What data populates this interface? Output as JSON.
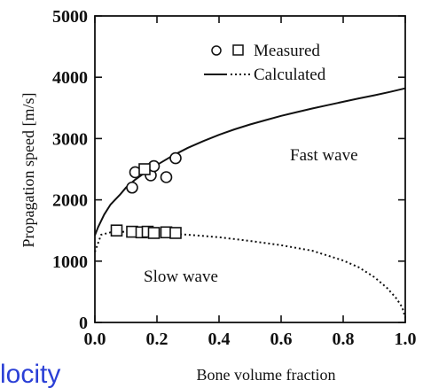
{
  "chart_data": {
    "type": "scatter",
    "title": "",
    "xlabel": "Bone volume fraction",
    "ylabel": "Propagation speed [m/s]",
    "xlim": [
      0.0,
      1.0
    ],
    "ylim": [
      0,
      5000
    ],
    "x_ticks": [
      "0.0",
      "0.2",
      "0.4",
      "0.6",
      "0.8",
      "1.0"
    ],
    "y_ticks": [
      "0",
      "1000",
      "2000",
      "3000",
      "4000",
      "5000"
    ],
    "grid": false,
    "legend": {
      "position": "top-right",
      "entries": [
        {
          "label": "Measured",
          "style": "markers"
        },
        {
          "label": "Calculated",
          "style": "lines"
        }
      ]
    },
    "annotations": [
      "Fast wave",
      "Slow wave"
    ],
    "series": [
      {
        "name": "Fast wave",
        "measured": {
          "circles": [
            [
              0.12,
              2200
            ],
            [
              0.13,
              2450
            ],
            [
              0.18,
              2400
            ],
            [
              0.19,
              2550
            ],
            [
              0.23,
              2370
            ],
            [
              0.26,
              2680
            ]
          ],
          "squares": [
            [
              0.16,
              2500
            ]
          ]
        },
        "calculated": {
          "style": "solid",
          "x": [
            0.0,
            0.01,
            0.03,
            0.05,
            0.08,
            0.1,
            0.13,
            0.16,
            0.2,
            0.25,
            0.3,
            0.35,
            0.4,
            0.45,
            0.5,
            0.55,
            0.6,
            0.65,
            0.7,
            0.75,
            0.8,
            0.85,
            0.9,
            0.95,
            1.0
          ],
          "y": [
            1420,
            1550,
            1760,
            1920,
            2080,
            2200,
            2330,
            2440,
            2570,
            2720,
            2850,
            2960,
            3060,
            3150,
            3230,
            3300,
            3370,
            3430,
            3490,
            3545,
            3600,
            3655,
            3705,
            3760,
            3820
          ]
        }
      },
      {
        "name": "Slow wave",
        "measured": {
          "circles": [],
          "squares": [
            [
              0.07,
              1500
            ],
            [
              0.12,
              1480
            ],
            [
              0.15,
              1470
            ],
            [
              0.17,
              1480
            ],
            [
              0.19,
              1460
            ],
            [
              0.23,
              1470
            ],
            [
              0.26,
              1460
            ]
          ]
        },
        "calculated": {
          "style": "dotted",
          "x": [
            0.0,
            0.02,
            0.05,
            0.1,
            0.2,
            0.3,
            0.4,
            0.5,
            0.6,
            0.7,
            0.8,
            0.85,
            0.9,
            0.94,
            0.97,
            0.99,
            1.0
          ],
          "y": [
            1150,
            1430,
            1470,
            1480,
            1460,
            1430,
            1390,
            1330,
            1260,
            1170,
            1010,
            900,
            740,
            570,
            400,
            250,
            80
          ]
        }
      }
    ]
  },
  "overlay": {
    "text": "locity",
    "color": "#2a3fd6"
  }
}
